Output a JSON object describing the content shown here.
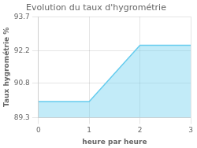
{
  "chart_data": {
    "type": "area",
    "title": "Evolution du taux d'hygrométrie",
    "xlabel": "heure par heure",
    "ylabel": "Taux hygrométrie %",
    "x": [
      0,
      1,
      2,
      3
    ],
    "values": [
      90.0,
      90.0,
      92.45,
      92.45
    ],
    "xlim": [
      0,
      3
    ],
    "ylim": [
      89.3,
      93.7
    ],
    "xticks": [
      0,
      1,
      2,
      3
    ],
    "yticks": [
      89.3,
      90.8,
      92.2,
      93.7
    ],
    "grid": true,
    "color": "#66ccee"
  }
}
